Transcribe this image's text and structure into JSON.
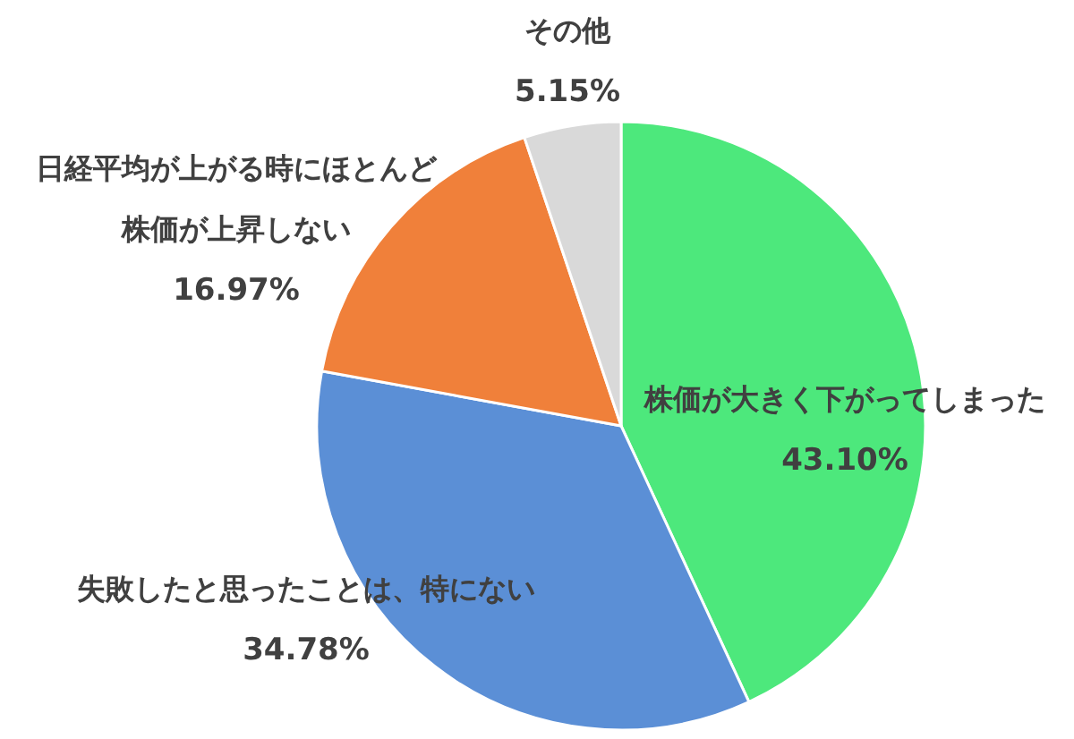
{
  "chart_data": {
    "type": "pie",
    "categories": [
      "株価が大きく下がってしまった",
      "失敗したと思ったことは、特にない",
      "日経平均が上がる時にほとんど株価が上昇しない",
      "その他"
    ],
    "values": [
      43.1,
      34.78,
      16.97,
      5.15
    ],
    "value_labels": [
      "43.10%",
      "34.78%",
      "16.97%",
      "5.15%"
    ],
    "colors": [
      "#4de87c",
      "#5b8fd6",
      "#f0803a",
      "#d9d9d9"
    ]
  }
}
